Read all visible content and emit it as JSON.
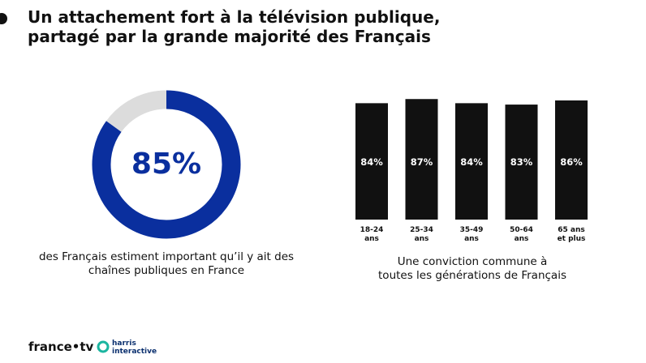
{
  "title": "Un attachement fort à la télévision publique,\npartagé par la grande majorité des Français",
  "footer": {
    "logo_left": "france•tv",
    "logo_right": "harris\ninteractive"
  },
  "chart_data": [
    {
      "type": "donut",
      "values": [
        85,
        15
      ],
      "value_labels": [
        "85%",
        null
      ],
      "colors": [
        "#0a2f9e",
        "#dcdcdc"
      ],
      "caption": "des Français estiment important qu’il y ait des\nchaînes publiques en France"
    },
    {
      "type": "bar",
      "categories": [
        "18-24\nans",
        "25-34\nans",
        "35-49\nans",
        "50-64\nans",
        "65 ans\net plus"
      ],
      "values": [
        84,
        87,
        84,
        83,
        86
      ],
      "value_labels": [
        "84%",
        "87%",
        "84%",
        "83%",
        "86%"
      ],
      "color": "#111111",
      "ylim": [
        0,
        100
      ],
      "caption": "Une conviction commune à\ntoutes les générations de Français"
    }
  ]
}
